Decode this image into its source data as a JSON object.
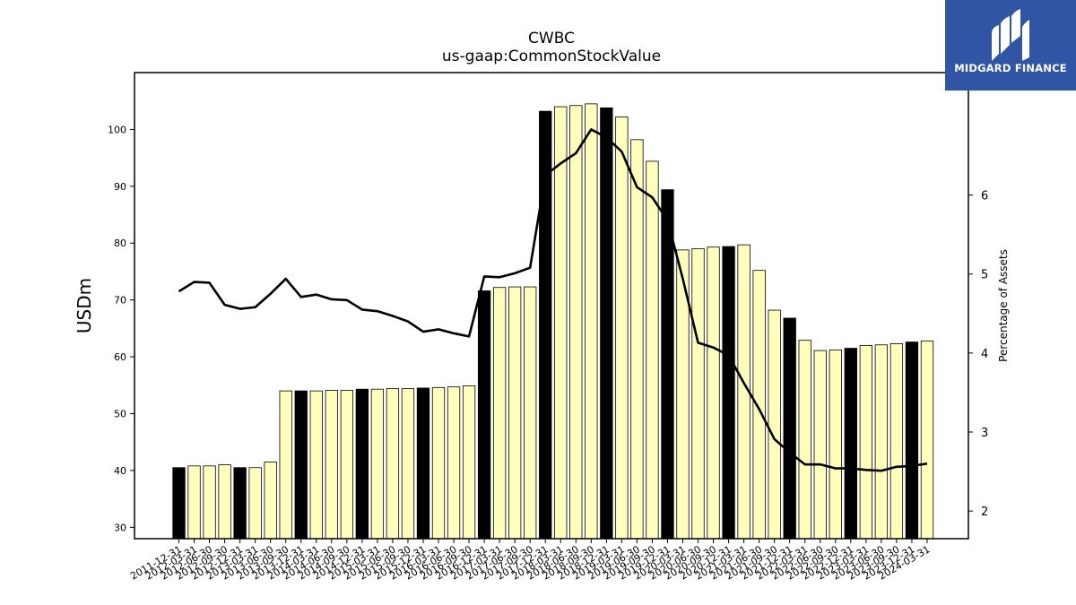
{
  "brand": {
    "name": "MIDGARD FINANCE",
    "background": "#2f55a4",
    "icon": "midgard-logo-icon"
  },
  "chart_data": {
    "type": "bar",
    "title": "CWBC",
    "subtitle": "us-gaap:CommonStockValue",
    "ylabel": "USDm",
    "y2label": "Percentage of Assets",
    "ylim": [
      28,
      110
    ],
    "y2lim": [
      1.65,
      7.55
    ],
    "yticks": [
      30,
      40,
      50,
      60,
      70,
      80,
      90,
      100
    ],
    "y2ticks": [
      2,
      3,
      4,
      5,
      6
    ],
    "bar_colors": {
      "q4": "#000000",
      "other": "#ffffbb"
    },
    "line_color": "#000000",
    "categories": [
      "2011-12-31",
      "2012-03-31",
      "2012-06-30",
      "2012-09-30",
      "2012-12-31",
      "2013-03-31",
      "2013-06-30",
      "2013-09-30",
      "2013-12-31",
      "2014-03-31",
      "2014-06-30",
      "2014-09-30",
      "2014-12-31",
      "2015-03-31",
      "2015-06-30",
      "2015-09-30",
      "2015-12-31",
      "2016-03-31",
      "2016-06-30",
      "2016-09-30",
      "2016-12-31",
      "2017-03-31",
      "2017-06-30",
      "2017-09-30",
      "2017-12-31",
      "2018-03-31",
      "2018-06-30",
      "2018-09-30",
      "2018-12-31",
      "2019-03-31",
      "2019-06-30",
      "2019-09-30",
      "2019-12-31",
      "2020-03-31",
      "2020-06-30",
      "2020-09-30",
      "2020-12-31",
      "2021-03-31",
      "2021-06-30",
      "2021-09-30",
      "2021-12-31",
      "2022-03-31",
      "2022-06-30",
      "2022-09-30",
      "2022-12-31",
      "2023-03-31",
      "2023-06-30",
      "2023-09-30",
      "2023-12-31",
      "2024-03-31"
    ],
    "series": [
      {
        "name": "",
        "type": "bar",
        "values": [
          40.5,
          40.8,
          40.8,
          41.0,
          40.5,
          40.5,
          41.5,
          54.0,
          54.0,
          54.0,
          54.1,
          54.1,
          54.3,
          54.3,
          54.4,
          54.4,
          54.5,
          54.6,
          54.7,
          54.9,
          71.6,
          72.2,
          72.3,
          72.3,
          103.2,
          104.0,
          104.2,
          104.5,
          103.8,
          102.2,
          98.2,
          94.4,
          89.4,
          78.8,
          79.0,
          79.3,
          79.4,
          79.7,
          75.2,
          68.2,
          66.8,
          62.9,
          61.1,
          61.2,
          61.5,
          62.0,
          62.1,
          62.3,
          62.6,
          62.8
        ]
      },
      {
        "name": "",
        "type": "line",
        "axis": "right",
        "values": [
          4.78,
          4.9,
          4.89,
          4.61,
          4.56,
          4.58,
          4.75,
          4.94,
          4.71,
          4.74,
          4.68,
          4.67,
          4.55,
          4.53,
          4.47,
          4.4,
          4.27,
          4.3,
          4.25,
          4.21,
          4.97,
          4.96,
          5.01,
          5.08,
          6.25,
          6.4,
          6.53,
          6.83,
          6.73,
          6.55,
          6.1,
          5.97,
          5.68,
          4.94,
          4.13,
          4.07,
          3.97,
          3.62,
          3.29,
          2.91,
          2.74,
          2.59,
          2.59,
          2.54,
          2.54,
          2.52,
          2.51,
          2.56,
          2.57,
          2.6
        ]
      }
    ]
  }
}
